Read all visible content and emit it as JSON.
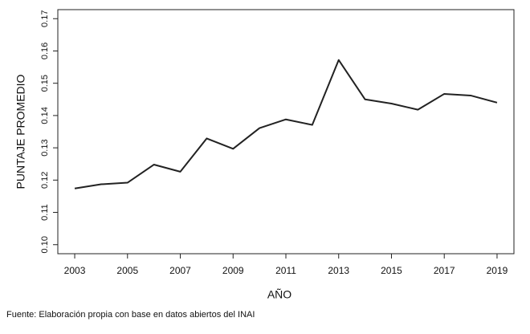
{
  "chart_data": {
    "type": "line",
    "x_label": "AÑO",
    "y_label": "PUNTAJE PROMEDIO",
    "source": "Fuente: Elaboración propia con base en datos abiertos del INAI",
    "x": [
      2003,
      2004,
      2005,
      2006,
      2007,
      2008,
      2009,
      2010,
      2011,
      2012,
      2013,
      2014,
      2015,
      2016,
      2017,
      2018,
      2019
    ],
    "series": [
      {
        "name": "PUNTAJE PROMEDIO",
        "color": "#222222",
        "values": [
          0.1174,
          0.1187,
          0.1192,
          0.1248,
          0.1226,
          0.1329,
          0.1297,
          0.1361,
          0.1388,
          0.1371,
          0.1572,
          0.145,
          0.1437,
          0.1418,
          0.1467,
          0.1462,
          0.144
        ]
      }
    ],
    "xlim": [
      2002.36,
      2019.64
    ],
    "xticks": [
      2003,
      2005,
      2007,
      2009,
      2011,
      2013,
      2015,
      2017,
      2019
    ],
    "ylim": [
      0.0972,
      0.1728
    ],
    "yticks": [
      {
        "value": 0.1,
        "label": "0.10"
      },
      0.11,
      0.12,
      0.13,
      0.14,
      0.15,
      0.16,
      0.17
    ],
    "grid": false
  }
}
